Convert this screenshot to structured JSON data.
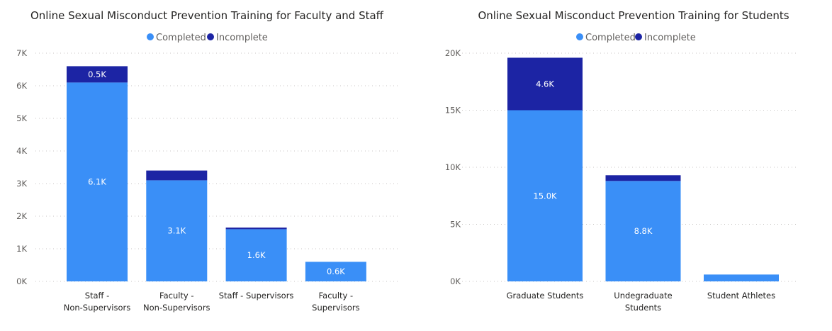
{
  "chart_data": [
    {
      "type": "bar",
      "stacked": true,
      "title": "Online Sexual Misconduct Prevention Training for Faculty and Staff",
      "legend": {
        "placement": "top-center",
        "entries": [
          "Completed",
          "Incomplete"
        ]
      },
      "categories": [
        [
          "Staff -",
          "Non-Supervisors"
        ],
        [
          "Faculty -",
          "Non-Supervisors"
        ],
        [
          "Staff - Supervisors"
        ],
        [
          "Faculty -",
          "Supervisors"
        ]
      ],
      "series": [
        {
          "name": "Completed",
          "color": "#3a8ff7",
          "values": [
            6.1,
            3.1,
            1.6,
            0.6
          ],
          "labels": [
            "6.1K",
            "3.1K",
            "1.6K",
            "0.6K"
          ]
        },
        {
          "name": "Incomplete",
          "color": "#1c24a4",
          "values": [
            0.5,
            0.3,
            0.05,
            0
          ],
          "labels": [
            "0.5K",
            "",
            "",
            ""
          ]
        }
      ],
      "yticks": [
        0,
        1,
        2,
        3,
        4,
        5,
        6,
        7
      ],
      "ytick_labels": [
        "0K",
        "1K",
        "2K",
        "3K",
        "4K",
        "5K",
        "6K",
        "7K"
      ],
      "ylim": [
        0,
        7
      ],
      "yunit": "thousands",
      "grid": true,
      "xlabel": "",
      "ylabel": ""
    },
    {
      "type": "bar",
      "stacked": true,
      "title": "Online Sexual Misconduct Prevention Training for Students",
      "legend": {
        "placement": "top-center",
        "entries": [
          "Completed",
          "Incomplete"
        ]
      },
      "categories": [
        [
          "Graduate Students"
        ],
        [
          "Undegraduate",
          "Students"
        ],
        [
          "Student Athletes"
        ]
      ],
      "series": [
        {
          "name": "Completed",
          "color": "#3a8ff7",
          "values": [
            15.0,
            8.8,
            0.6
          ],
          "labels": [
            "15.0K",
            "8.8K",
            ""
          ]
        },
        {
          "name": "Incomplete",
          "color": "#1c24a4",
          "values": [
            4.6,
            0.5,
            0
          ],
          "labels": [
            "4.6K",
            "",
            ""
          ]
        }
      ],
      "yticks": [
        0,
        5,
        10,
        15,
        20
      ],
      "ytick_labels": [
        "0K",
        "5K",
        "10K",
        "15K",
        "20K"
      ],
      "ylim": [
        0,
        20
      ],
      "yunit": "thousands",
      "grid": true,
      "xlabel": "",
      "ylabel": ""
    }
  ]
}
